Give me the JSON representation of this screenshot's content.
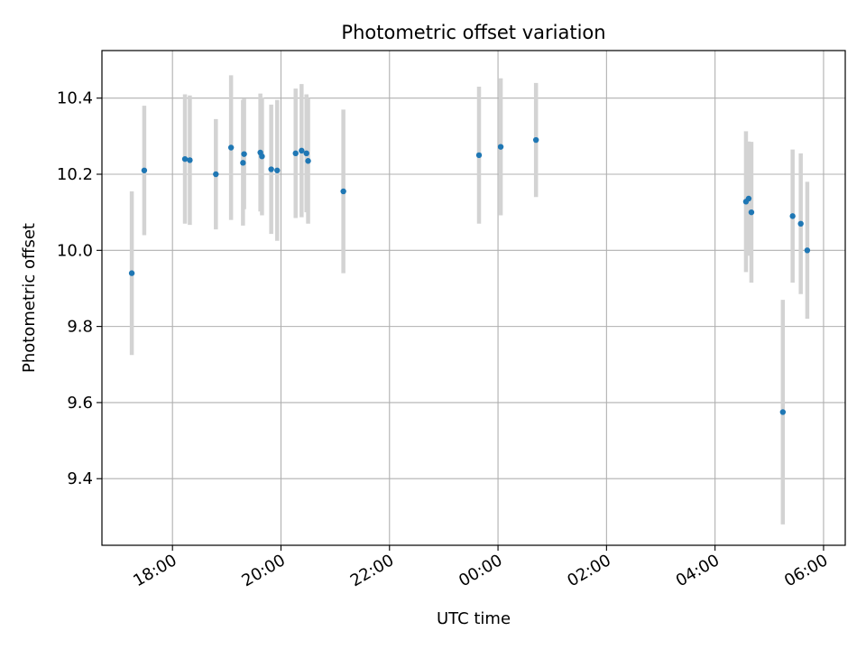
{
  "chart_data": {
    "type": "scatter",
    "title": "Photometric offset variation",
    "xlabel": "UTC time",
    "ylabel": "Photometric offset",
    "grid": true,
    "xlim_hours": [
      16.7,
      30.4
    ],
    "ylim": [
      9.225,
      10.525
    ],
    "x_ticks": [
      {
        "label": "18:00",
        "value": 18
      },
      {
        "label": "20:00",
        "value": 20
      },
      {
        "label": "22:00",
        "value": 22
      },
      {
        "label": "00:00",
        "value": 24
      },
      {
        "label": "02:00",
        "value": 26
      },
      {
        "label": "04:00",
        "value": 28
      },
      {
        "label": "06:00",
        "value": 30
      }
    ],
    "y_ticks": [
      {
        "label": "9.4",
        "value": 9.4
      },
      {
        "label": "9.6",
        "value": 9.6
      },
      {
        "label": "9.8",
        "value": 9.8
      },
      {
        "label": "10.0",
        "value": 10.0
      },
      {
        "label": "10.2",
        "value": 10.2
      },
      {
        "label": "10.4",
        "value": 10.4
      }
    ],
    "colors": {
      "point": "#1f77b4",
      "errorbar": "#d3d3d3",
      "grid": "#b0b0b0",
      "axis": "#000000"
    },
    "series": [
      {
        "name": "offset",
        "points": [
          {
            "x": 17.25,
            "y": 9.94,
            "err": 0.215
          },
          {
            "x": 17.48,
            "y": 10.21,
            "err": 0.17
          },
          {
            "x": 18.23,
            "y": 10.24,
            "err": 0.17
          },
          {
            "x": 18.32,
            "y": 10.237,
            "err": 0.17
          },
          {
            "x": 18.8,
            "y": 10.2,
            "err": 0.145
          },
          {
            "x": 19.08,
            "y": 10.27,
            "err": 0.19
          },
          {
            "x": 19.3,
            "y": 10.23,
            "err": 0.165
          },
          {
            "x": 19.32,
            "y": 10.253,
            "err": 0.145
          },
          {
            "x": 19.62,
            "y": 10.257,
            "err": 0.155
          },
          {
            "x": 19.65,
            "y": 10.247,
            "err": 0.155
          },
          {
            "x": 19.82,
            "y": 10.213,
            "err": 0.17
          },
          {
            "x": 19.93,
            "y": 10.21,
            "err": 0.185
          },
          {
            "x": 20.27,
            "y": 10.255,
            "err": 0.17
          },
          {
            "x": 20.38,
            "y": 10.262,
            "err": 0.175
          },
          {
            "x": 20.47,
            "y": 10.255,
            "err": 0.155
          },
          {
            "x": 20.5,
            "y": 10.235,
            "err": 0.165
          },
          {
            "x": 21.15,
            "y": 10.155,
            "err": 0.215
          },
          {
            "x": 23.65,
            "y": 10.25,
            "err": 0.18
          },
          {
            "x": 24.05,
            "y": 10.272,
            "err": 0.18
          },
          {
            "x": 24.7,
            "y": 10.29,
            "err": 0.15
          },
          {
            "x": 28.57,
            "y": 10.128,
            "err": 0.185
          },
          {
            "x": 28.62,
            "y": 10.136,
            "err": 0.15
          },
          {
            "x": 28.67,
            "y": 10.1,
            "err": 0.185
          },
          {
            "x": 29.25,
            "y": 9.575,
            "err": 0.295
          },
          {
            "x": 29.43,
            "y": 10.09,
            "err": 0.175
          },
          {
            "x": 29.58,
            "y": 10.07,
            "err": 0.185
          },
          {
            "x": 29.7,
            "y": 10.0,
            "err": 0.18
          }
        ]
      }
    ]
  }
}
